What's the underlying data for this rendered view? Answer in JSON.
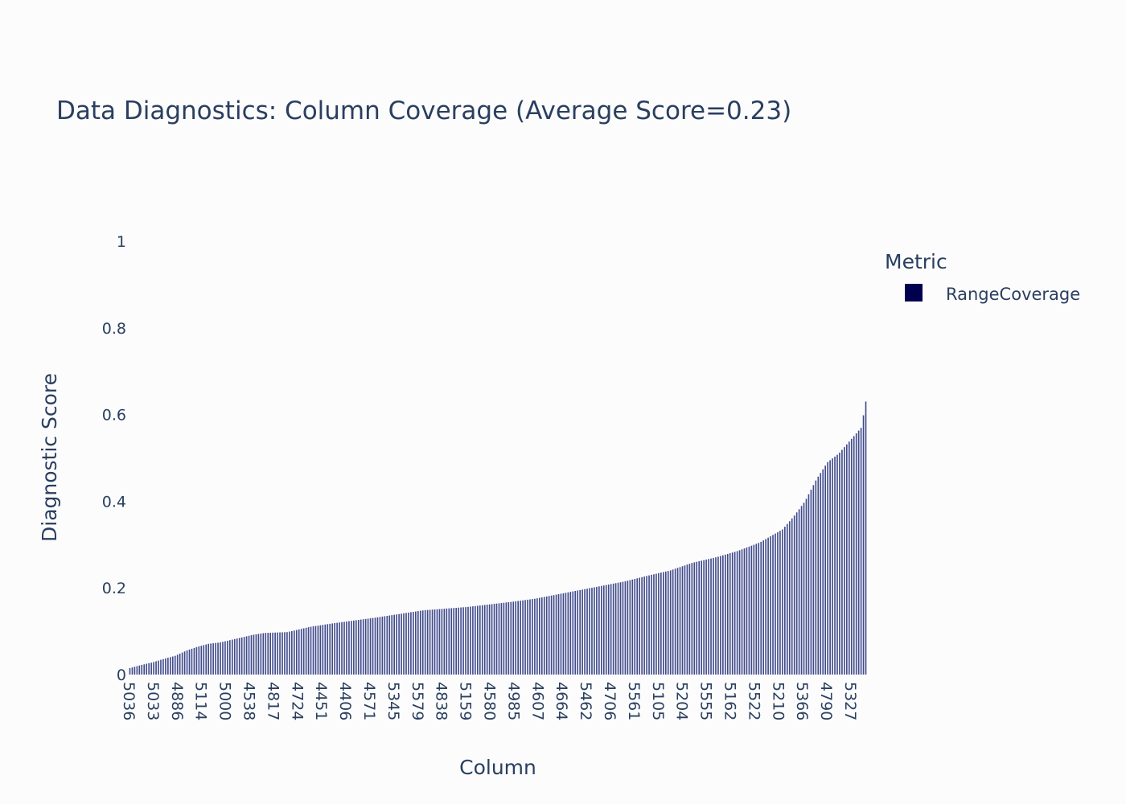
{
  "chart_data": {
    "type": "bar",
    "title": "Data Diagnostics: Column Coverage (Average Score=0.23)",
    "xlabel": "Column",
    "ylabel": "Diagnostic Score",
    "ylim": [
      0,
      1
    ],
    "yticks": [
      "0",
      "0.2",
      "0.4",
      "0.6",
      "0.8",
      "1"
    ],
    "ytick_values": [
      0,
      0.2,
      0.4,
      0.6,
      0.8,
      1
    ],
    "xtick_labels": [
      "5036",
      "5033",
      "4886",
      "5114",
      "5000",
      "4538",
      "4817",
      "4724",
      "4451",
      "4406",
      "4571",
      "5345",
      "5579",
      "4838",
      "5159",
      "4580",
      "4985",
      "4607",
      "4664",
      "5462",
      "4706",
      "5561",
      "5105",
      "5204",
      "5555",
      "5162",
      "5522",
      "5210",
      "5366",
      "4790",
      "5327"
    ],
    "bar_count": 310,
    "legend": {
      "title": "Metric",
      "placement": "right",
      "items": [
        {
          "name": "RangeCoverage",
          "color": "#00004f"
        }
      ]
    },
    "bar_color": "#3f4a8a",
    "series": [
      {
        "name": "RangeCoverage",
        "profile": [
          [
            0,
            0.015
          ],
          [
            5,
            0.022
          ],
          [
            10,
            0.028
          ],
          [
            15,
            0.036
          ],
          [
            20,
            0.043
          ],
          [
            25,
            0.055
          ],
          [
            30,
            0.064
          ],
          [
            35,
            0.071
          ],
          [
            40,
            0.074
          ],
          [
            45,
            0.08
          ],
          [
            50,
            0.086
          ],
          [
            55,
            0.092
          ],
          [
            60,
            0.096
          ],
          [
            70,
            0.098
          ],
          [
            80,
            0.11
          ],
          [
            90,
            0.118
          ],
          [
            100,
            0.125
          ],
          [
            110,
            0.132
          ],
          [
            120,
            0.14
          ],
          [
            130,
            0.148
          ],
          [
            140,
            0.152
          ],
          [
            150,
            0.156
          ],
          [
            160,
            0.162
          ],
          [
            170,
            0.168
          ],
          [
            180,
            0.175
          ],
          [
            190,
            0.185
          ],
          [
            200,
            0.195
          ],
          [
            210,
            0.205
          ],
          [
            220,
            0.215
          ],
          [
            230,
            0.228
          ],
          [
            240,
            0.24
          ],
          [
            250,
            0.258
          ],
          [
            260,
            0.27
          ],
          [
            270,
            0.285
          ],
          [
            280,
            0.305
          ],
          [
            290,
            0.335
          ],
          [
            295,
            0.365
          ],
          [
            300,
            0.4
          ],
          [
            305,
            0.45
          ],
          [
            310,
            0.49
          ],
          [
            315,
            0.51
          ],
          [
            320,
            0.54
          ],
          [
            325,
            0.57
          ],
          [
            327,
            0.63
          ]
        ]
      }
    ]
  }
}
